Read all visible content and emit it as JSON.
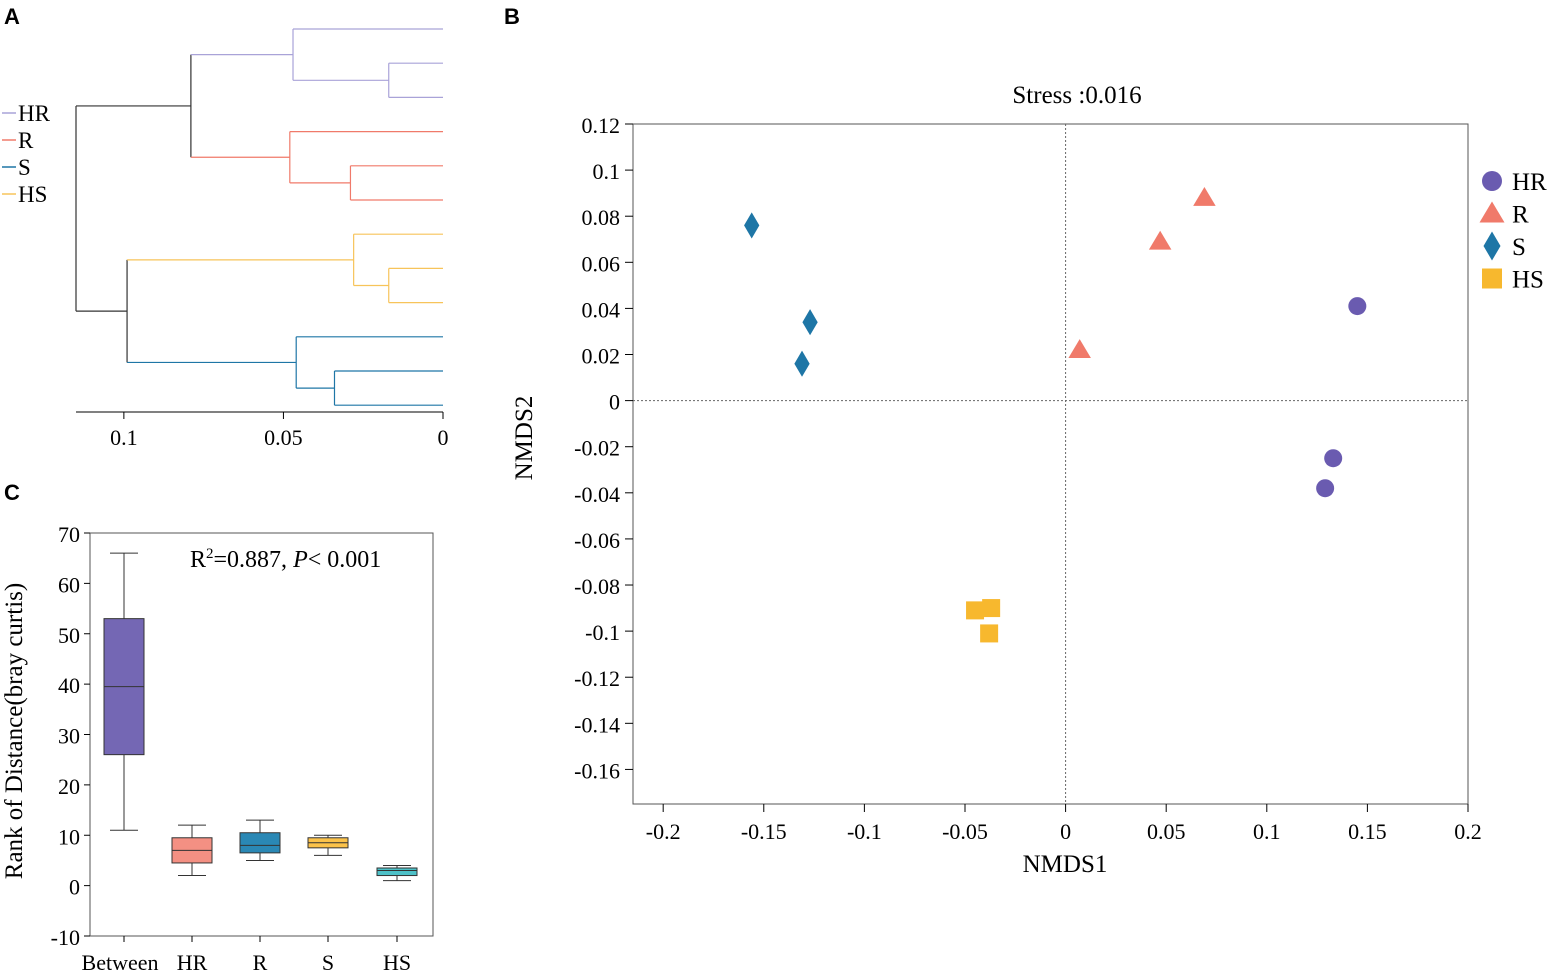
{
  "panels": {
    "a": "A",
    "b": "B",
    "c": "C"
  },
  "colors": {
    "HR": "#6a5bb0",
    "R": "#f07a6a",
    "S": "#1e76a6",
    "HS": "#f7b82e",
    "axis": "#000000",
    "line": "#333333"
  },
  "chart_data": [
    {
      "type": "dendrogram",
      "panel": "A",
      "legend": [
        {
          "label": "HR",
          "color": "#a9a3d8"
        },
        {
          "label": "R",
          "color": "#f07a6a"
        },
        {
          "label": "S",
          "color": "#1e76a6"
        },
        {
          "label": "HS",
          "color": "#f7c45a"
        }
      ],
      "xlim": [
        0.115,
        0
      ],
      "xticks": [
        0.1,
        0.05,
        0
      ],
      "xtick_labels": [
        "0.1",
        "0.05",
        "0"
      ],
      "leaves": 12,
      "merges": [
        {
          "leaves": [
            1,
            2
          ],
          "height": 0.017,
          "group": "HR"
        },
        {
          "leaves": [
            0,
            "HR12"
          ],
          "height": 0.047,
          "group": "HR"
        },
        {
          "leaves": [
            4,
            5
          ],
          "height": 0.029,
          "group": "R"
        },
        {
          "leaves": [
            3,
            "R45"
          ],
          "height": 0.048,
          "group": "R"
        },
        {
          "leaves": [
            "HR",
            "R"
          ],
          "height": 0.079,
          "group": "root"
        },
        {
          "leaves": [
            7,
            8
          ],
          "height": 0.017,
          "group": "HS"
        },
        {
          "leaves": [
            6,
            "HS78"
          ],
          "height": 0.028,
          "group": "HS"
        },
        {
          "leaves": [
            10,
            11
          ],
          "height": 0.034,
          "group": "S"
        },
        {
          "leaves": [
            9,
            "S1011"
          ],
          "height": 0.046,
          "group": "S"
        },
        {
          "leaves": [
            "HS",
            "S"
          ],
          "height": 0.099,
          "group": "root"
        },
        {
          "leaves": [
            "HRR",
            "HSS"
          ],
          "height": 0.115,
          "group": "root"
        }
      ]
    },
    {
      "type": "scatter",
      "panel": "B",
      "title": "Stress :0.016",
      "xlabel": "NMDS1",
      "ylabel": "NMDS2",
      "xlim": [
        -0.215,
        0.2
      ],
      "ylim": [
        -0.175,
        0.12
      ],
      "xticks": [
        -0.2,
        -0.15,
        -0.1,
        -0.05,
        0,
        0.05,
        0.1,
        0.15,
        0.2
      ],
      "xtick_labels": [
        "-0.2",
        "-0.15",
        "-0.1",
        "-0.05",
        "0",
        "0.05",
        "0.1",
        "0.15",
        "0.2"
      ],
      "yticks": [
        0.12,
        0.1,
        0.08,
        0.06,
        0.04,
        0.02,
        0,
        -0.02,
        -0.04,
        -0.06,
        -0.08,
        -0.1,
        -0.12,
        -0.14,
        -0.16
      ],
      "ytick_labels": [
        "0.12",
        "0.1",
        "0.08",
        "0.06",
        "0.04",
        "0.02",
        "0",
        "-0.02",
        "-0.04",
        "-0.06",
        "-0.08",
        "-0.1",
        "-0.12",
        "-0.14",
        "-0.16"
      ],
      "reference_lines": {
        "x": 0,
        "y": 0
      },
      "legend_position": "right",
      "series": [
        {
          "name": "HR",
          "marker": "circle",
          "color": "#6a5bb0",
          "points": [
            [
              0.145,
              0.041
            ],
            [
              0.133,
              -0.025
            ],
            [
              0.129,
              -0.038
            ]
          ]
        },
        {
          "name": "R",
          "marker": "triangle",
          "color": "#f07a6a",
          "points": [
            [
              0.069,
              0.088
            ],
            [
              0.047,
              0.069
            ],
            [
              0.007,
              0.022
            ]
          ]
        },
        {
          "name": "S",
          "marker": "diamond",
          "color": "#1e76a6",
          "points": [
            [
              -0.156,
              0.076
            ],
            [
              -0.127,
              0.034
            ],
            [
              -0.131,
              0.016
            ]
          ]
        },
        {
          "name": "HS",
          "marker": "square",
          "color": "#f7b82e",
          "points": [
            [
              -0.045,
              -0.091
            ],
            [
              -0.037,
              -0.09
            ],
            [
              -0.038,
              -0.101
            ]
          ]
        }
      ]
    },
    {
      "type": "box",
      "panel": "C",
      "annotation": {
        "r_part": "R",
        "r_sup": "2",
        "r_rest": "=0.887, ",
        "p_part": "P",
        "p_rest": "< 0.001"
      },
      "ylabel": "Rank of Distance(bray curtis)",
      "ylim": [
        -10,
        70
      ],
      "yticks": [
        -10,
        0,
        10,
        20,
        30,
        40,
        50,
        60,
        70
      ],
      "ytick_labels": [
        "-10",
        "0",
        "10",
        "20",
        "30",
        "40",
        "50",
        "60",
        "70"
      ],
      "categories": [
        "Between",
        "HR",
        "R",
        "S",
        "HS"
      ],
      "boxes": [
        {
          "name": "Between",
          "color": "#7467b4",
          "min": 11,
          "q1": 26,
          "median": 39.5,
          "q3": 53,
          "max": 66
        },
        {
          "name": "HR",
          "color": "#f49083",
          "min": 2,
          "q1": 4.5,
          "median": 7,
          "q3": 9.5,
          "max": 12
        },
        {
          "name": "R",
          "color": "#2a88b5",
          "min": 5,
          "q1": 6.5,
          "median": 8,
          "q3": 10.5,
          "max": 13
        },
        {
          "name": "S",
          "color": "#fbc24a",
          "min": 6,
          "q1": 7.5,
          "median": 8.5,
          "q3": 9.5,
          "max": 10
        },
        {
          "name": "HS",
          "color": "#4ec1c8",
          "min": 1,
          "q1": 2,
          "median": 3,
          "q3": 3.5,
          "max": 4
        }
      ]
    }
  ]
}
